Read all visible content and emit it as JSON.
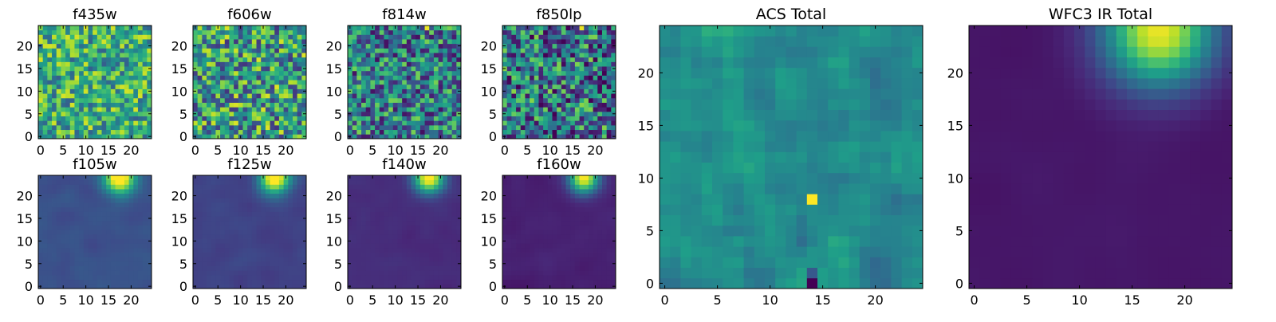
{
  "colormap": [
    "#440154",
    "#482878",
    "#3e4989",
    "#31688e",
    "#26828e",
    "#1f9e89",
    "#35b779",
    "#6ece58",
    "#b5de2b",
    "#fde725"
  ],
  "chart_data": [
    {
      "type": "heatmap",
      "title": "f435w",
      "grid_size": 25,
      "x_ticks": [
        0,
        5,
        10,
        15,
        20
      ],
      "y_ticks": [
        0,
        5,
        10,
        15,
        20
      ],
      "pattern": "noise",
      "base": 0.62,
      "amp": 0.32,
      "peak": [],
      "seed": 11
    },
    {
      "type": "heatmap",
      "title": "f606w",
      "grid_size": 25,
      "x_ticks": [
        0,
        5,
        10,
        15,
        20
      ],
      "y_ticks": [
        0,
        5,
        10,
        15,
        20
      ],
      "pattern": "noise",
      "base": 0.55,
      "amp": 0.4,
      "peak": [],
      "seed": 23
    },
    {
      "type": "heatmap",
      "title": "f814w",
      "grid_size": 25,
      "x_ticks": [
        0,
        5,
        10,
        15,
        20
      ],
      "y_ticks": [
        0,
        5,
        10,
        15,
        20
      ],
      "pattern": "noise",
      "base": 0.42,
      "amp": 0.38,
      "peak": [
        17,
        24
      ],
      "seed": 37
    },
    {
      "type": "heatmap",
      "title": "f850lp",
      "grid_size": 25,
      "x_ticks": [
        0,
        5,
        10,
        15,
        20
      ],
      "y_ticks": [
        0,
        5,
        10,
        15,
        20
      ],
      "pattern": "noise",
      "base": 0.4,
      "amp": 0.42,
      "peak": [
        17,
        24
      ],
      "seed": 53
    },
    {
      "type": "heatmap",
      "title": "f105w",
      "grid_size": 25,
      "x_ticks": [
        0,
        5,
        10,
        15,
        20
      ],
      "y_ticks": [
        0,
        5,
        10,
        15,
        20
      ],
      "pattern": "smooth",
      "base": 0.25,
      "amp": 0.1,
      "peak": [
        17.5,
        24
      ],
      "seed": 61
    },
    {
      "type": "heatmap",
      "title": "f125w",
      "grid_size": 25,
      "x_ticks": [
        0,
        5,
        10,
        15,
        20
      ],
      "y_ticks": [
        0,
        5,
        10,
        15,
        20
      ],
      "pattern": "smooth",
      "base": 0.2,
      "amp": 0.08,
      "peak": [
        17.5,
        24
      ],
      "seed": 71
    },
    {
      "type": "heatmap",
      "title": "f140w",
      "grid_size": 25,
      "x_ticks": [
        0,
        5,
        10,
        15,
        20
      ],
      "y_ticks": [
        0,
        5,
        10,
        15,
        20
      ],
      "pattern": "smooth",
      "base": 0.13,
      "amp": 0.06,
      "peak": [
        17.5,
        24
      ],
      "seed": 83
    },
    {
      "type": "heatmap",
      "title": "f160w",
      "grid_size": 25,
      "x_ticks": [
        0,
        5,
        10,
        15,
        20
      ],
      "y_ticks": [
        0,
        5,
        10,
        15,
        20
      ],
      "pattern": "smooth",
      "base": 0.09,
      "amp": 0.05,
      "peak": [
        17.5,
        24
      ],
      "seed": 97
    },
    {
      "type": "heatmap",
      "title": "ACS Total",
      "grid_size": 25,
      "x_ticks": [
        0,
        5,
        10,
        15,
        20
      ],
      "y_ticks": [
        0,
        5,
        10,
        15,
        20
      ],
      "pattern": "acs",
      "base": 0.48,
      "amp": 0.24,
      "peak": [
        14,
        8
      ],
      "seed": 131
    },
    {
      "type": "heatmap",
      "title": "WFC3 IR Total",
      "grid_size": 25,
      "x_ticks": [
        0,
        5,
        10,
        15,
        20
      ],
      "y_ticks": [
        0,
        5,
        10,
        15,
        20
      ],
      "pattern": "ir",
      "base": 0.06,
      "amp": 0.03,
      "peak": [
        17.5,
        24
      ],
      "seed": 151
    }
  ]
}
